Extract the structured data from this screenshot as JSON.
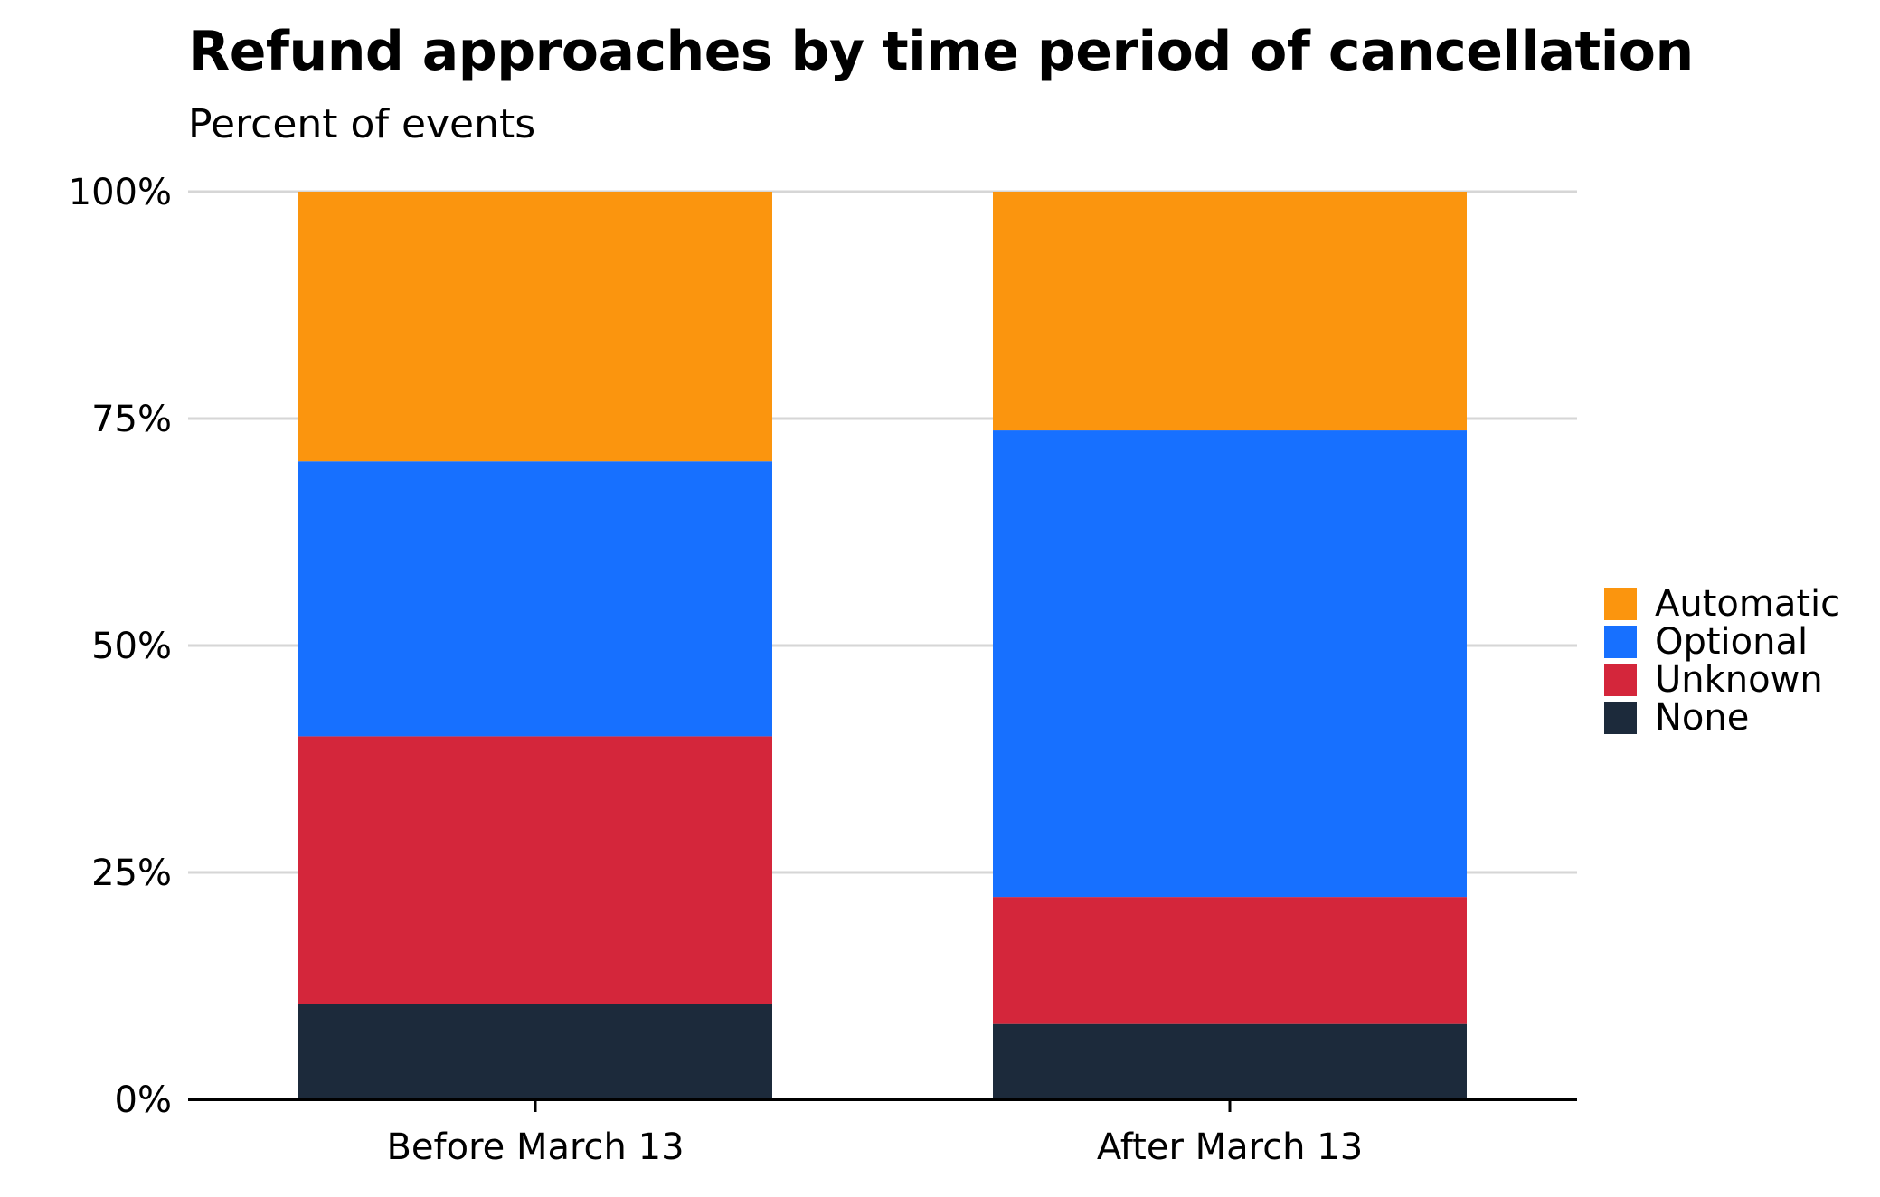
{
  "chart_data": {
    "type": "bar",
    "stacked": true,
    "title": "Refund approaches by time period of cancellation",
    "subtitle": "Percent of events",
    "categories": [
      "Before March 13",
      "After March 13"
    ],
    "series": [
      {
        "name": "None",
        "values": [
          10.5,
          8.3
        ],
        "color": "#1c2a3b"
      },
      {
        "name": "Unknown",
        "values": [
          29.5,
          14.0
        ],
        "color": "#d4263b"
      },
      {
        "name": "Optional",
        "values": [
          30.3,
          51.4
        ],
        "color": "#1770ff"
      },
      {
        "name": "Automatic",
        "values": [
          29.7,
          26.3
        ],
        "color": "#fb950e"
      }
    ],
    "legend_order": [
      "Automatic",
      "Optional",
      "Unknown",
      "None"
    ],
    "yticks": [
      "0%",
      "25%",
      "50%",
      "75%",
      "100%"
    ],
    "ytick_values": [
      0,
      25,
      50,
      75,
      100
    ],
    "ylim": [
      0,
      100
    ],
    "grid": true,
    "legend_position": "right"
  }
}
